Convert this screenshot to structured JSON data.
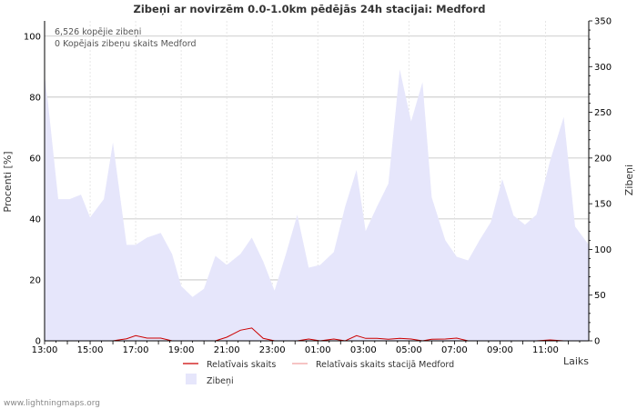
{
  "chart_data": {
    "type": "area",
    "title": "Zibeņi ar novirzēm 0.0-1.0km pēdējās 24h stacijai: Medford",
    "ylabel_left": "Procenti   [%]",
    "ylabel_right": "Zibeņi",
    "xlabel": "Laiks",
    "ylim_left": [
      0,
      105
    ],
    "ylim_right": [
      0,
      350
    ],
    "yticks_left": [
      0,
      20,
      40,
      60,
      80,
      100
    ],
    "yticks_right": [
      0,
      50,
      100,
      150,
      200,
      250,
      300,
      350
    ],
    "xrange_hours": [
      0,
      23.9
    ],
    "xticks": [
      {
        "h": 0,
        "label": "13:00"
      },
      {
        "h": 2,
        "label": "15:00"
      },
      {
        "h": 4,
        "label": "17:00"
      },
      {
        "h": 6,
        "label": "19:00"
      },
      {
        "h": 8,
        "label": "21:00"
      },
      {
        "h": 10,
        "label": "23:00"
      },
      {
        "h": 12,
        "label": "01:00"
      },
      {
        "h": 14,
        "label": "03:00"
      },
      {
        "h": 16,
        "label": "05:00"
      },
      {
        "h": 18,
        "label": "07:00"
      },
      {
        "h": 20,
        "label": "09:00"
      },
      {
        "h": 22,
        "label": "11:00"
      }
    ],
    "annotations": [
      "6,526 kopējie zibeņi",
      "0 Kopējais zibeņu skaits Medford"
    ],
    "series": [
      {
        "name": "Zibeņi",
        "axis": "right",
        "color": "#e6e6fb",
        "hours": [
          0,
          0.15,
          0.6,
          1.1,
          1.6,
          2.0,
          2.6,
          3.0,
          3.6,
          4.0,
          4.5,
          5.1,
          5.6,
          6.0,
          6.5,
          7.0,
          7.5,
          8.0,
          8.6,
          9.1,
          9.6,
          10.1,
          10.6,
          11.1,
          11.6,
          12.1,
          12.7,
          13.2,
          13.7,
          14.1,
          14.6,
          15.1,
          15.6,
          16.1,
          16.6,
          17.0,
          17.6,
          18.1,
          18.6,
          19.1,
          19.6,
          20.1,
          20.6,
          21.1,
          21.6,
          22.2,
          22.8,
          23.3,
          23.9
        ],
        "values": [
          290,
          260,
          155,
          155,
          160,
          135,
          155,
          217,
          105,
          105,
          113,
          118,
          95,
          60,
          48,
          57,
          93,
          83,
          95,
          113,
          87,
          55,
          95,
          138,
          80,
          83,
          97,
          147,
          187,
          120,
          147,
          172,
          297,
          240,
          283,
          157,
          110,
          92,
          88,
          110,
          130,
          177,
          137,
          127,
          138,
          197,
          245,
          125,
          105
        ]
      },
      {
        "name": "Relatīvais skaits",
        "axis": "left",
        "color": "#cc0000",
        "hours": [
          0,
          2.0,
          3.0,
          3.6,
          4.0,
          4.5,
          5.1,
          5.6,
          6.5,
          7.5,
          8.0,
          8.6,
          9.1,
          9.6,
          10.1,
          11.1,
          11.6,
          12.1,
          12.7,
          13.2,
          13.7,
          14.1,
          14.6,
          15.1,
          15.6,
          16.1,
          16.6,
          17.0,
          17.6,
          18.1,
          18.6,
          21.6,
          22.2,
          22.8,
          23.9
        ],
        "values": [
          0,
          0,
          0,
          0.7,
          1.7,
          0.9,
          0.9,
          0,
          0,
          0,
          1.2,
          3.5,
          4.2,
          0.8,
          0,
          0,
          0.6,
          0,
          0.6,
          0,
          1.7,
          0.8,
          0.8,
          0.5,
          0.8,
          0.6,
          0,
          0.5,
          0.6,
          0.9,
          0,
          0,
          0.3,
          0,
          0
        ]
      },
      {
        "name": "Relatīvais skaits stacijā Medford",
        "axis": "left",
        "color": "#f0a0a0",
        "hours": [
          0,
          23.9
        ],
        "values": [
          0,
          0
        ]
      }
    ]
  },
  "footer": "www.lightningmaps.org"
}
